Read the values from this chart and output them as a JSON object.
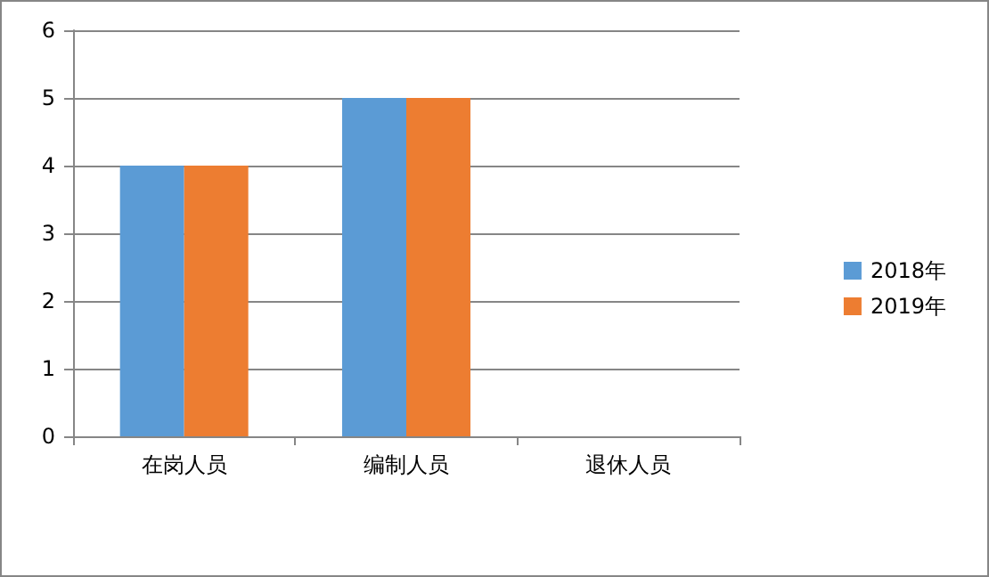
{
  "chart_data": {
    "type": "bar",
    "categories": [
      "在岗人员",
      "编制人员",
      "退休人员"
    ],
    "series": [
      {
        "name": "2018年",
        "color": "#5b9bd5",
        "values": [
          4,
          5,
          0
        ]
      },
      {
        "name": "2019年",
        "color": "#ed7d31",
        "values": [
          4,
          5,
          0
        ]
      }
    ],
    "ylim": [
      0,
      6
    ],
    "yticks": [
      0,
      1,
      2,
      3,
      4,
      5,
      6
    ],
    "grid": "y",
    "legend": "right"
  }
}
